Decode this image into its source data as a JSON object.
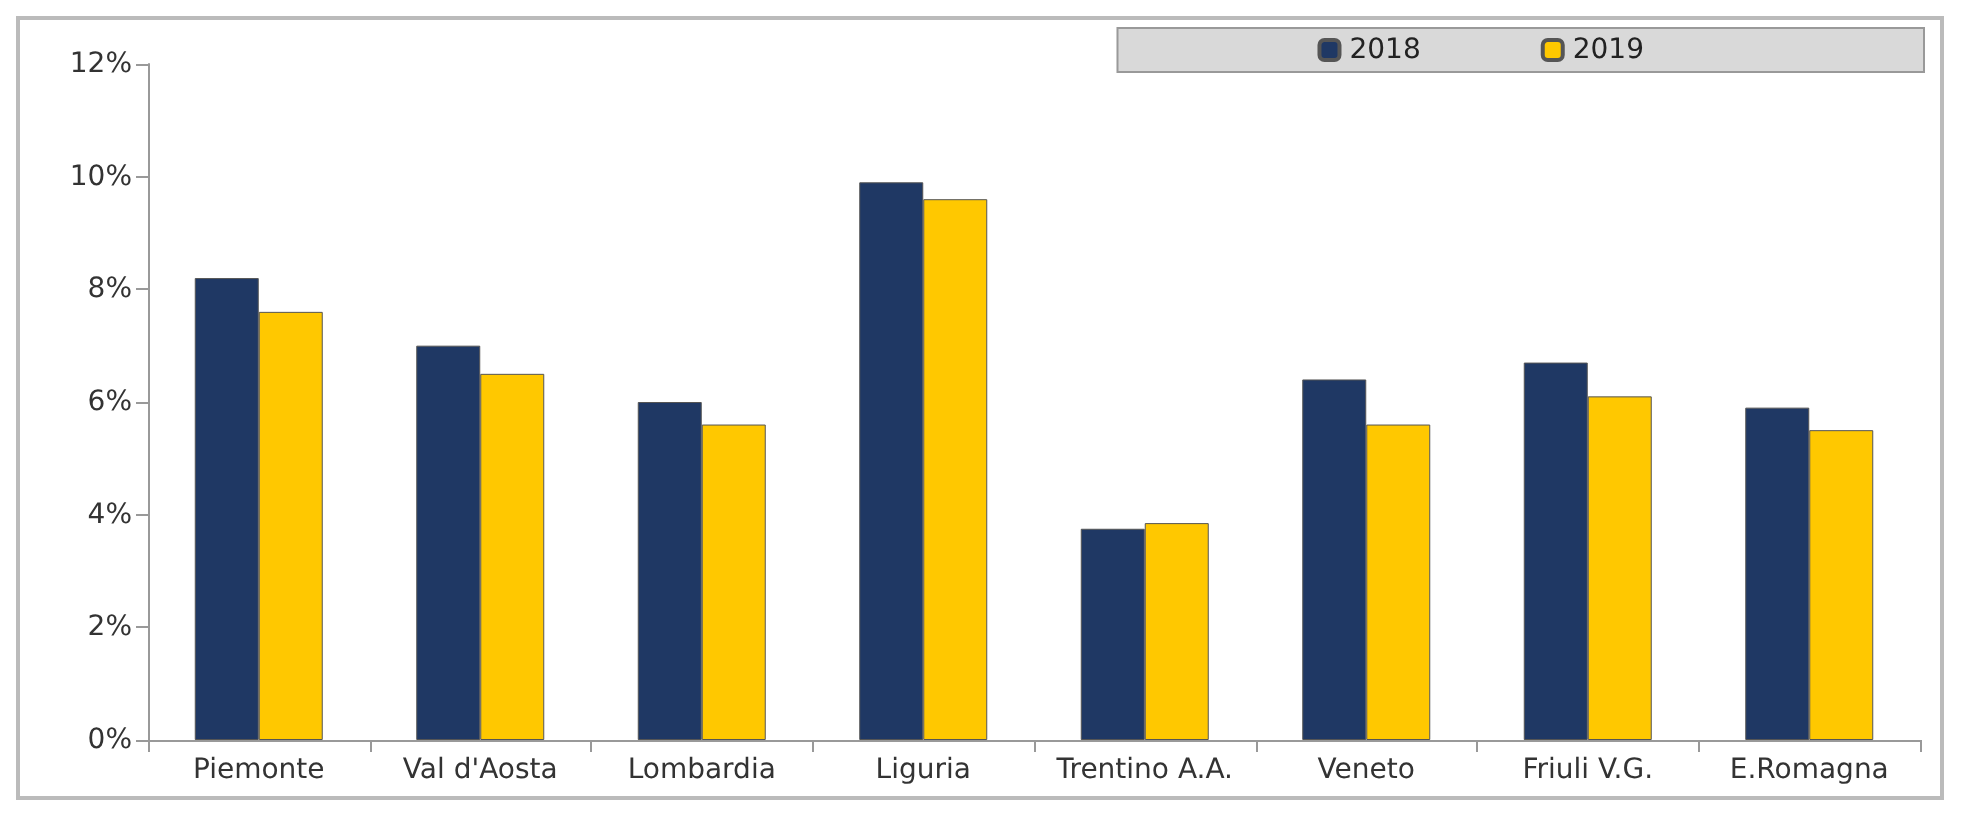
{
  "chart_data": {
    "type": "bar",
    "categories": [
      "Piemonte",
      "Val d'Aosta",
      "Lombardia",
      "Liguria",
      "Trentino A.A.",
      "Veneto",
      "Friuli V.G.",
      "E.Romagna"
    ],
    "series": [
      {
        "name": "2018",
        "color": "#1f3864",
        "values": [
          8.2,
          7.0,
          6.0,
          9.9,
          3.75,
          6.4,
          6.7,
          5.9
        ]
      },
      {
        "name": "2019",
        "color": "#ffc800",
        "values": [
          7.6,
          6.5,
          5.6,
          9.6,
          3.85,
          5.6,
          6.1,
          5.5
        ]
      }
    ],
    "ylim": [
      0,
      12
    ],
    "yticks": [
      {
        "value": 0,
        "label": "0%"
      },
      {
        "value": 2,
        "label": "2%"
      },
      {
        "value": 4,
        "label": "4%"
      },
      {
        "value": 6,
        "label": "6%"
      },
      {
        "value": 8,
        "label": "8%"
      },
      {
        "value": 10,
        "label": "10%"
      },
      {
        "value": 12,
        "label": "12%"
      }
    ],
    "grid": false,
    "legend": "top right"
  }
}
